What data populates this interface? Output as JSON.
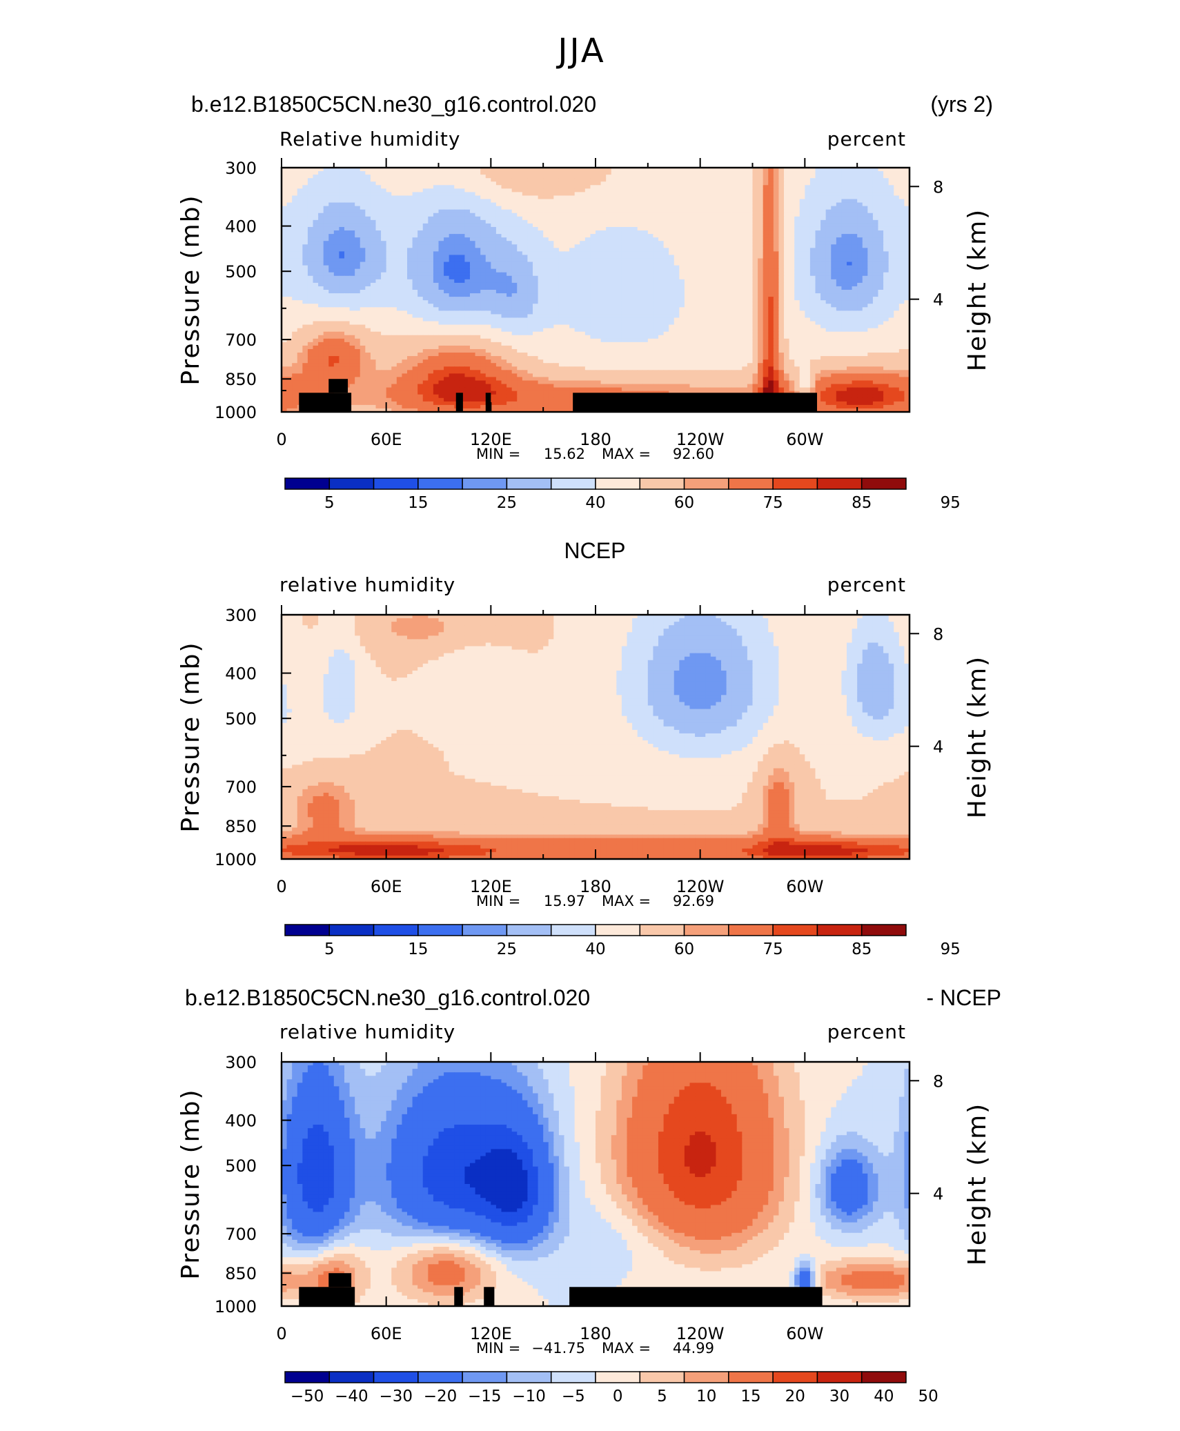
{
  "page_title": "JJA",
  "chart_data": [
    {
      "type": "heatmap",
      "left_title": "b.e12.B1850C5CN.ne30_g16.control.020",
      "right_title": "(yrs 2)",
      "variable": "Relative humidity",
      "units": "percent",
      "ylabel": "Pressure (mb)",
      "ylabel_right": "Height (km)",
      "y_ticks": [
        "300",
        "400",
        "500",
        "700",
        "850",
        "1000"
      ],
      "y_right_ticks": [
        "8",
        "4"
      ],
      "x_ticks": [
        "0",
        "60E",
        "120E",
        "180",
        "120W",
        "60W"
      ],
      "stats": {
        "min_label": "MIN =",
        "min": "15.62",
        "max_label": "MAX =",
        "max": "92.60"
      },
      "colorbar_labels": [
        "5",
        "15",
        "25",
        "40",
        "60",
        "75",
        "85",
        "95"
      ],
      "colorbar_colors": [
        "#000090",
        "#0a2fc4",
        "#1f4fe6",
        "#3c6ff0",
        "#6f98f2",
        "#a3bff5",
        "#cfe0fb",
        "#fde9da",
        "#f9c8aa",
        "#f5a07a",
        "#ef7548",
        "#e5481e",
        "#c82410",
        "#900c0c"
      ],
      "field": {
        "base": 55,
        "blobs": [
          {
            "lon": 35,
            "p": 460,
            "amp": -30,
            "sx": 18,
            "sy": 90
          },
          {
            "lon": 100,
            "p": 500,
            "amp": -32,
            "sx": 20,
            "sy": 120
          },
          {
            "lon": 135,
            "p": 560,
            "amp": -18,
            "sx": 12,
            "sy": 90
          },
          {
            "lon": 195,
            "p": 560,
            "amp": -10,
            "sx": 30,
            "sy": 140
          },
          {
            "lon": 325,
            "p": 480,
            "amp": -30,
            "sx": 18,
            "sy": 110
          },
          {
            "lon": 140,
            "p": 300,
            "amp": 15,
            "sx": 40,
            "sy": 40
          },
          {
            "lon": 280,
            "p": 650,
            "amp": 32,
            "sx": 5,
            "sy": 400
          },
          {
            "lon": 30,
            "p": 760,
            "amp": 28,
            "sx": 15,
            "sy": 80
          },
          {
            "lon": 100,
            "p": 820,
            "amp": 28,
            "sx": 25,
            "sy": 120
          },
          {
            "lon": 170,
            "p": 940,
            "amp": 25,
            "sx": 100,
            "sy": 80
          },
          {
            "lon": 335,
            "p": 920,
            "amp": 32,
            "sx": 30,
            "sy": 90
          },
          {
            "lon": 300,
            "p": 880,
            "amp": -20,
            "sx": 4,
            "sy": 50
          }
        ]
      },
      "masks": [
        {
          "lon0": 10,
          "lon1": 40,
          "p0": 910,
          "p1": 1000
        },
        {
          "lon0": 27,
          "lon1": 38,
          "p0": 850,
          "p1": 910
        },
        {
          "lon0": 100,
          "lon1": 104,
          "p0": 910,
          "p1": 1000
        },
        {
          "lon0": 117,
          "lon1": 120,
          "p0": 910,
          "p1": 1000
        },
        {
          "lon0": 167,
          "lon1": 307,
          "p0": 910,
          "p1": 1000
        }
      ]
    },
    {
      "type": "heatmap",
      "left_title": "",
      "center_title": "NCEP",
      "right_title": "",
      "variable": "relative humidity",
      "units": "percent",
      "ylabel": "Pressure (mb)",
      "ylabel_right": "Height (km)",
      "y_ticks": [
        "300",
        "400",
        "500",
        "700",
        "850",
        "1000"
      ],
      "y_right_ticks": [
        "8",
        "4"
      ],
      "x_ticks": [
        "0",
        "60E",
        "120E",
        "180",
        "120W",
        "60W"
      ],
      "stats": {
        "min_label": "MIN =",
        "min": "15.97",
        "max_label": "MAX =",
        "max": "92.69"
      },
      "colorbar_labels": [
        "5",
        "15",
        "25",
        "40",
        "60",
        "75",
        "85",
        "95"
      ],
      "colorbar_colors": [
        "#000090",
        "#0a2fc4",
        "#1f4fe6",
        "#3c6ff0",
        "#6f98f2",
        "#a3bff5",
        "#cfe0fb",
        "#fde9da",
        "#f9c8aa",
        "#f5a07a",
        "#ef7548",
        "#e5481e",
        "#c82410",
        "#900c0c"
      ],
      "field": {
        "base": 60,
        "blobs": [
          {
            "lon": 240,
            "p": 420,
            "amp": -34,
            "sx": 30,
            "sy": 120
          },
          {
            "lon": 340,
            "p": 420,
            "amp": -28,
            "sx": 12,
            "sy": 90
          },
          {
            "lon": 35,
            "p": 420,
            "amp": -16,
            "sx": 8,
            "sy": 80
          },
          {
            "lon": 110,
            "p": 400,
            "amp": -10,
            "sx": 14,
            "sy": 40
          },
          {
            "lon": 10,
            "p": 500,
            "amp": -8,
            "sx": 15,
            "sy": 80
          },
          {
            "lon": 25,
            "p": 780,
            "amp": 18,
            "sx": 15,
            "sy": 90
          },
          {
            "lon": 285,
            "p": 760,
            "amp": 20,
            "sx": 8,
            "sy": 120
          },
          {
            "lon": 180,
            "p": 960,
            "amp": 22,
            "sx": 120,
            "sy": 60
          },
          {
            "lon": 60,
            "p": 960,
            "amp": 18,
            "sx": 40,
            "sy": 50
          },
          {
            "lon": 320,
            "p": 960,
            "amp": 20,
            "sx": 40,
            "sy": 50
          },
          {
            "lon": 80,
            "p": 320,
            "amp": 12,
            "sx": 30,
            "sy": 30
          }
        ]
      },
      "masks": []
    },
    {
      "type": "heatmap",
      "left_title": "b.e12.B1850C5CN.ne30_g16.control.020",
      "right_title": "- NCEP",
      "variable": "relative humidity",
      "units": "percent",
      "ylabel": "Pressure (mb)",
      "ylabel_right": "Height (km)",
      "y_ticks": [
        "300",
        "400",
        "500",
        "700",
        "850",
        "1000"
      ],
      "y_right_ticks": [
        "8",
        "4"
      ],
      "x_ticks": [
        "0",
        "60E",
        "120E",
        "180",
        "120W",
        "60W"
      ],
      "stats": {
        "min_label": "MIN =",
        "min": "−41.75",
        "max_label": "MAX =",
        "max": "44.99"
      },
      "colorbar_labels": [
        "−50",
        "−40",
        "−30",
        "−20",
        "−15",
        "−10",
        "−5",
        "0",
        "5",
        "10",
        "15",
        "20",
        "30",
        "40",
        "50"
      ],
      "colorbar_colors": [
        "#000090",
        "#0a2fc4",
        "#1f4fe6",
        "#3c6ff0",
        "#6f98f2",
        "#a3bff5",
        "#cfe0fb",
        "#fde9da",
        "#f9c8aa",
        "#f5a07a",
        "#ef7548",
        "#e5481e",
        "#c82410",
        "#900c0c"
      ],
      "field": {
        "base": 0,
        "blobs": [
          {
            "lon": 20,
            "p": 520,
            "amp": -38,
            "sx": 14,
            "sy": 160
          },
          {
            "lon": 100,
            "p": 520,
            "amp": -38,
            "sx": 28,
            "sy": 150
          },
          {
            "lon": 135,
            "p": 560,
            "amp": -30,
            "sx": 14,
            "sy": 120
          },
          {
            "lon": 240,
            "p": 480,
            "amp": 42,
            "sx": 30,
            "sy": 180
          },
          {
            "lon": 325,
            "p": 560,
            "amp": -24,
            "sx": 12,
            "sy": 80
          },
          {
            "lon": 300,
            "p": 880,
            "amp": -30,
            "sx": 4,
            "sy": 50
          },
          {
            "lon": 95,
            "p": 830,
            "amp": 22,
            "sx": 20,
            "sy": 100
          },
          {
            "lon": 30,
            "p": 860,
            "amp": 18,
            "sx": 12,
            "sy": 100
          },
          {
            "lon": 340,
            "p": 880,
            "amp": 20,
            "sx": 25,
            "sy": 60
          },
          {
            "lon": 200,
            "p": 700,
            "amp": -6,
            "sx": 30,
            "sy": 100
          }
        ]
      },
      "masks": [
        {
          "lon0": 10,
          "lon1": 42,
          "p0": 910,
          "p1": 1000
        },
        {
          "lon0": 27,
          "lon1": 40,
          "p0": 850,
          "p1": 910
        },
        {
          "lon0": 99,
          "lon1": 104,
          "p0": 910,
          "p1": 1000
        },
        {
          "lon0": 116,
          "lon1": 122,
          "p0": 910,
          "p1": 1000
        },
        {
          "lon0": 165,
          "lon1": 310,
          "p0": 910,
          "p1": 1000
        }
      ]
    }
  ]
}
